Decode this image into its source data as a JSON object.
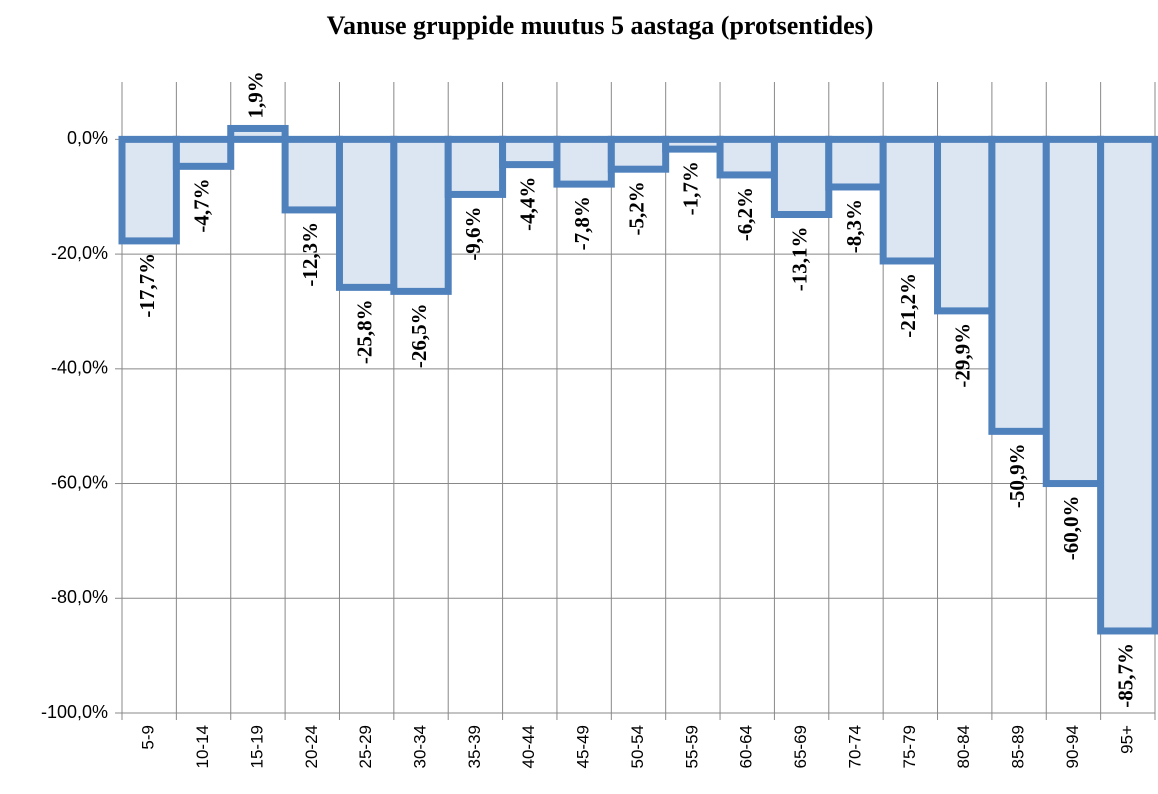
{
  "chart_data": {
    "type": "bar",
    "title": "Vanuse gruppide muutus 5 aastaga (protsentides)",
    "categories": [
      "5-9",
      "10-14",
      "15-19",
      "20-24",
      "25-29",
      "30-34",
      "35-39",
      "40-44",
      "45-49",
      "50-54",
      "55-59",
      "60-64",
      "65-69",
      "70-74",
      "75-79",
      "80-84",
      "85-89",
      "90-94",
      "95+"
    ],
    "values": [
      -17.7,
      -4.7,
      1.9,
      -12.3,
      -25.8,
      -26.5,
      -9.6,
      -4.4,
      -7.8,
      -5.2,
      -1.7,
      -6.2,
      -13.1,
      -8.3,
      -21.2,
      -29.9,
      -50.9,
      -60.0,
      -85.7
    ],
    "value_labels": [
      "-17,7%",
      "-4,7%",
      "1,9%",
      "-12,3%",
      "-25,8%",
      "-26,5%",
      "-9,6%",
      "-4,4%",
      "-7,8%",
      "-5,2%",
      "-1,7%",
      "-6,2%",
      "-13,1%",
      "-8,3%",
      "-21,2%",
      "-29,9%",
      "-50,9%",
      "-60,0%",
      "-85,7%"
    ],
    "color": "#dce6f2",
    "edge_color": "#4f81bd",
    "ylim": [
      -100,
      10
    ],
    "yticks": [
      {
        "value": -100,
        "label": "-100,0%"
      },
      {
        "value": -80,
        "label": "-80,0%"
      },
      {
        "value": -60,
        "label": "-60,0%"
      },
      {
        "value": -40,
        "label": "-40,0%"
      },
      {
        "value": -20,
        "label": "-20,0%"
      },
      {
        "value": 0,
        "label": "0,0%"
      }
    ],
    "grid": true
  }
}
